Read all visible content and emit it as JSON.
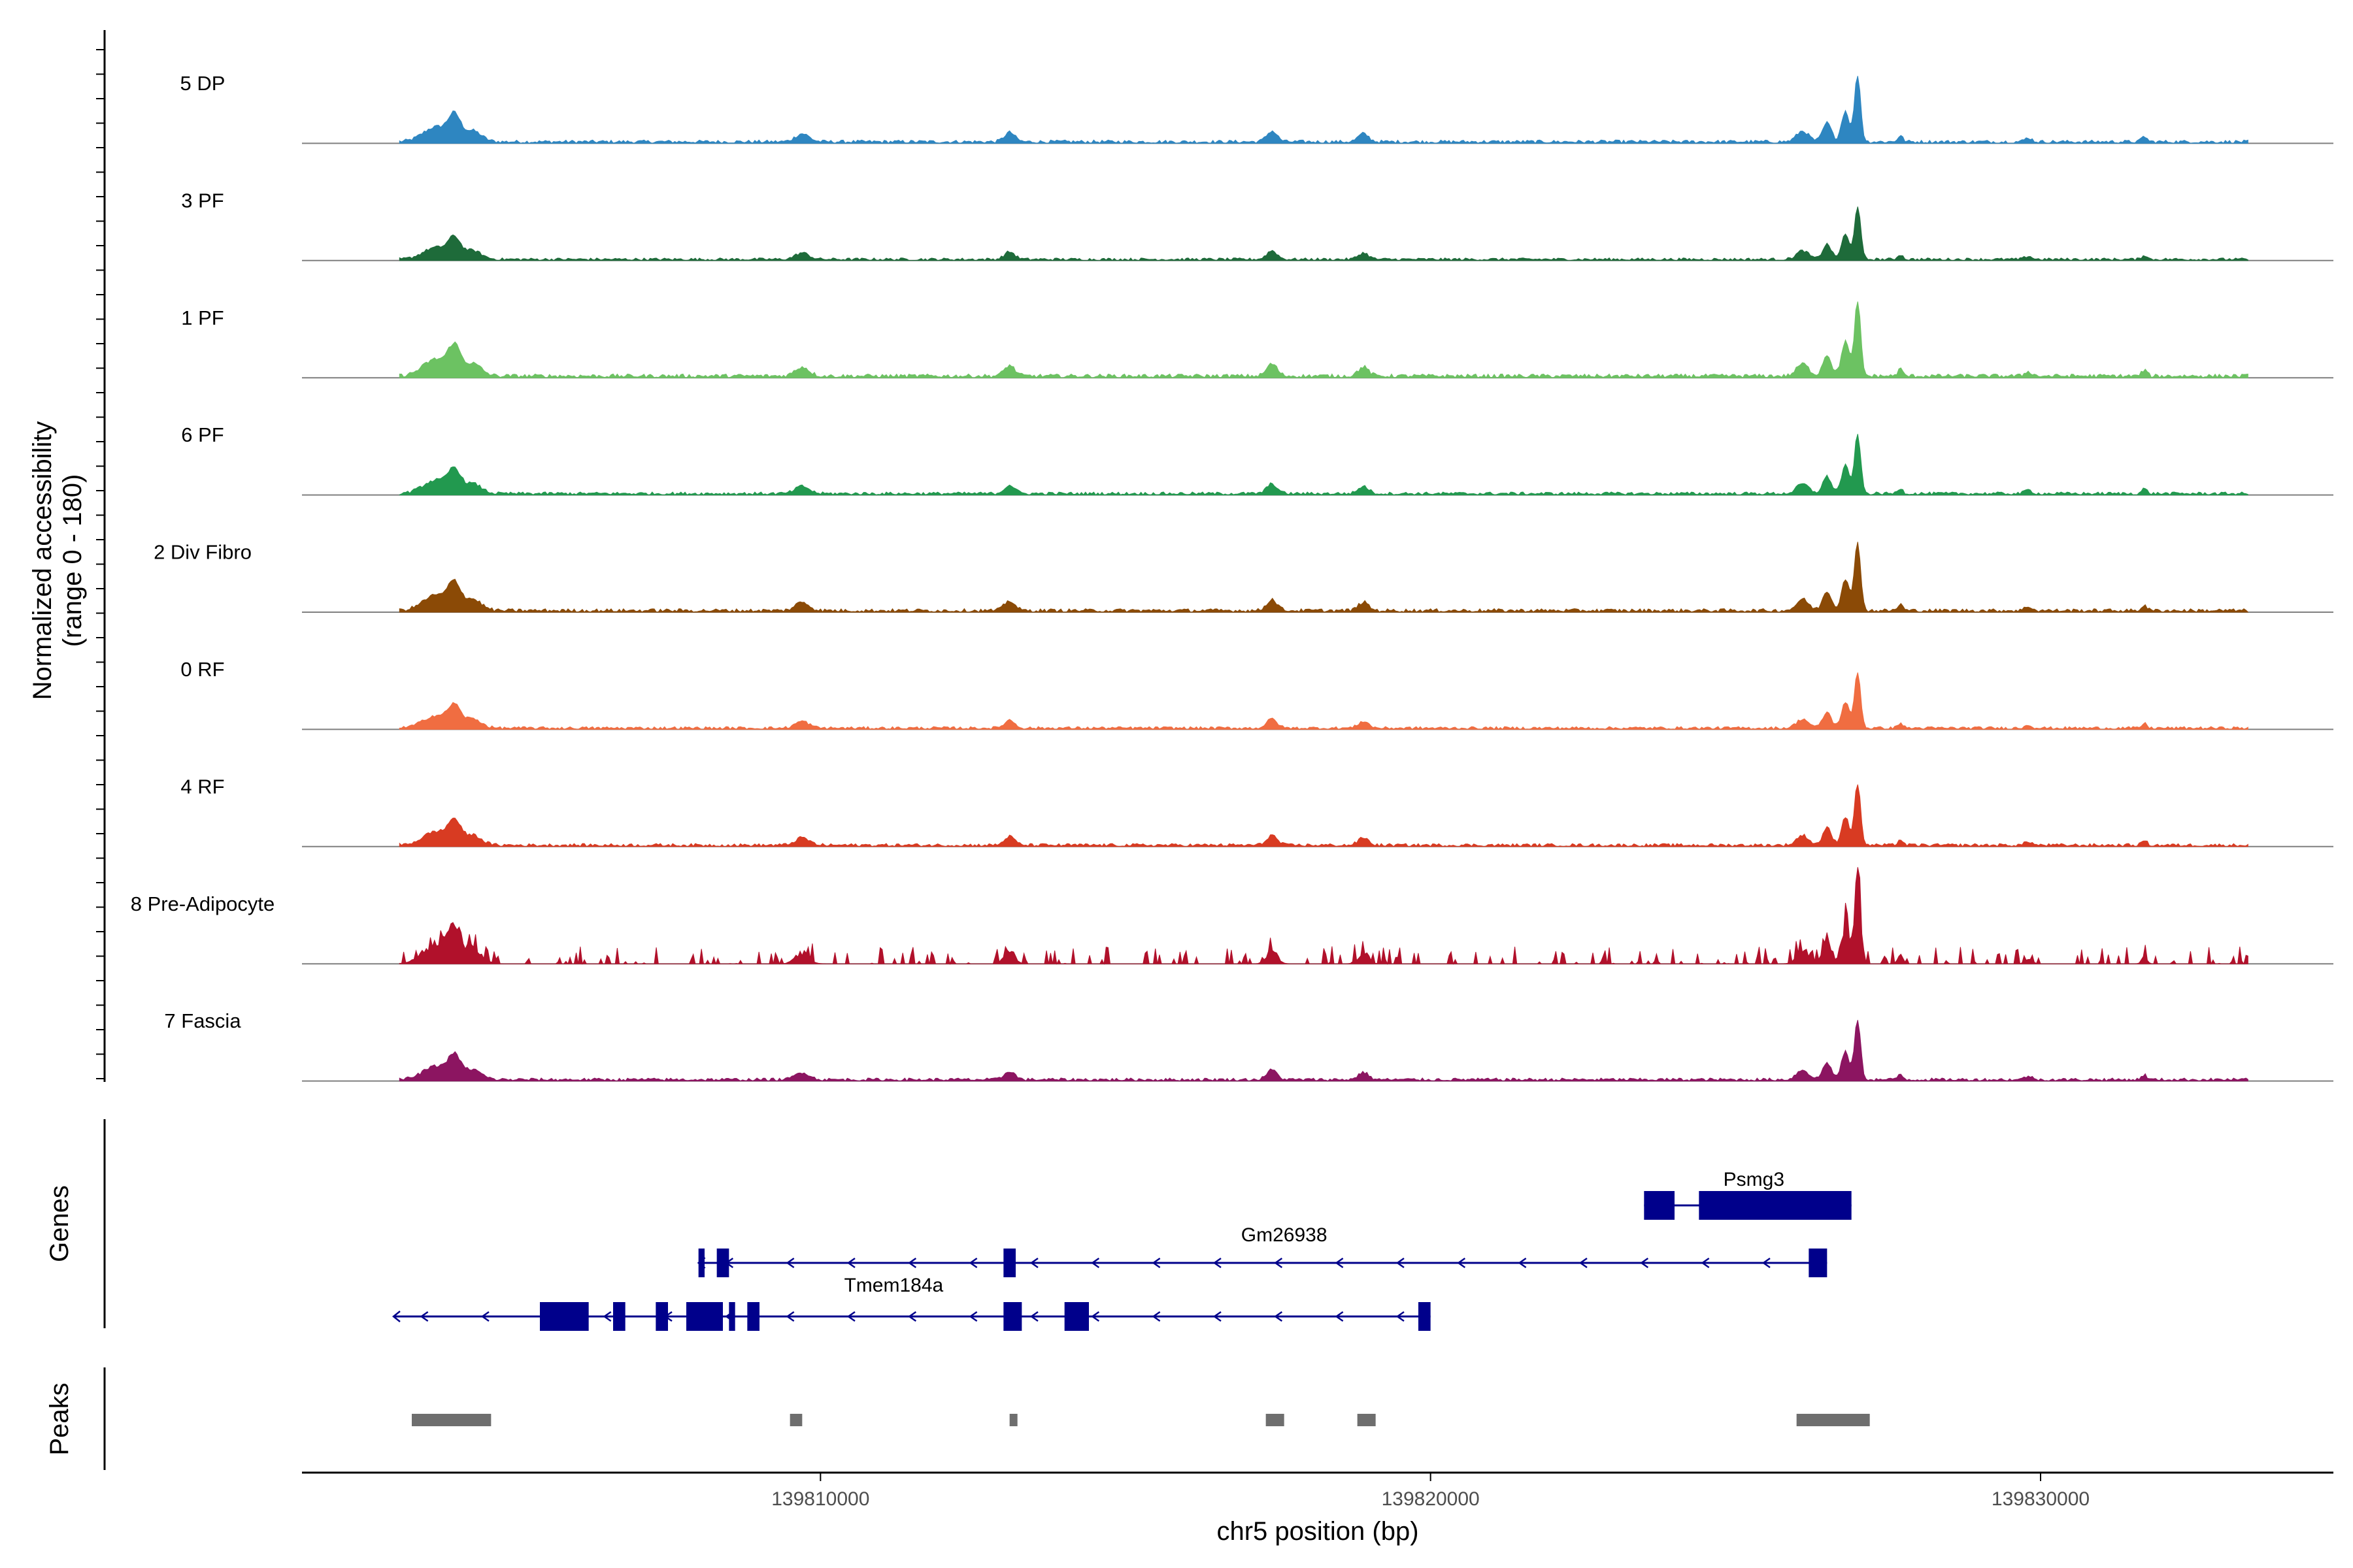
{
  "chart_data": {
    "type": "area",
    "title": "",
    "ylabel_line1": "Normalized accessibility",
    "ylabel_line2": "(range 0 - 180)",
    "y_range": [
      0,
      180
    ],
    "xlabel": "chr5 position (bp)",
    "x_range": [
      139801500,
      139834800
    ],
    "x_ticks": [
      139810000,
      139820000,
      139830000
    ],
    "x_tick_labels": [
      "139810000",
      "139820000",
      "139830000"
    ],
    "panel_labels": {
      "genes": "Genes",
      "peaks": "Peaks"
    },
    "tracks": [
      {
        "name": "5 DP",
        "color": "#2e86c1",
        "style": "smooth",
        "top_peak": 115
      },
      {
        "name": "3 PF",
        "color": "#1e6b3a",
        "style": "smooth",
        "top_peak": 92
      },
      {
        "name": "1 PF",
        "color": "#6cc262",
        "style": "smooth",
        "top_peak": 130
      },
      {
        "name": "6 PF",
        "color": "#22994f",
        "style": "smooth",
        "top_peak": 104
      },
      {
        "name": "2 Div Fibro",
        "color": "#8b4a06",
        "style": "smooth",
        "top_peak": 120
      },
      {
        "name": "0 RF",
        "color": "#f06d41",
        "style": "smooth",
        "top_peak": 97
      },
      {
        "name": "4 RF",
        "color": "#d83b22",
        "style": "smooth",
        "top_peak": 106
      },
      {
        "name": "8 Pre-Adipocyte",
        "color": "#b1112b",
        "style": "blocky",
        "top_peak": 165
      },
      {
        "name": "7 Fascia",
        "color": "#8c1561",
        "style": "smooth",
        "top_peak": 104
      }
    ],
    "genes": [
      {
        "name": "Psmg3",
        "strand": "+",
        "start": 139823500,
        "end": 139826900,
        "exons": [
          [
            139823500,
            139824000
          ],
          [
            139824400,
            139826900
          ]
        ]
      },
      {
        "name": "Gm26938",
        "strand": "-",
        "start": 139808000,
        "end": 139826500,
        "exons": [
          [
            139808000,
            139808100
          ],
          [
            139808300,
            139808500
          ],
          [
            139813000,
            139813200
          ],
          [
            139826200,
            139826500
          ]
        ]
      },
      {
        "name": "Tmem184a",
        "strand": "-",
        "start": 139803000,
        "end": 139820000,
        "exons": [
          [
            139805400,
            139806200
          ],
          [
            139806600,
            139806800
          ],
          [
            139807300,
            139807500
          ],
          [
            139807800,
            139808400
          ],
          [
            139808500,
            139808600
          ],
          [
            139808800,
            139809000
          ],
          [
            139813000,
            139813300
          ],
          [
            139814000,
            139814400
          ],
          [
            139819800,
            139820000
          ]
        ]
      }
    ],
    "peaks": [
      [
        139803300,
        139804600
      ],
      [
        139809500,
        139809700
      ],
      [
        139813100,
        139813200
      ],
      [
        139817300,
        139817600
      ],
      [
        139818800,
        139819100
      ],
      [
        139826000,
        139827200
      ]
    ],
    "gene_color": "#00008b",
    "peak_color": "#6e6e6e"
  }
}
